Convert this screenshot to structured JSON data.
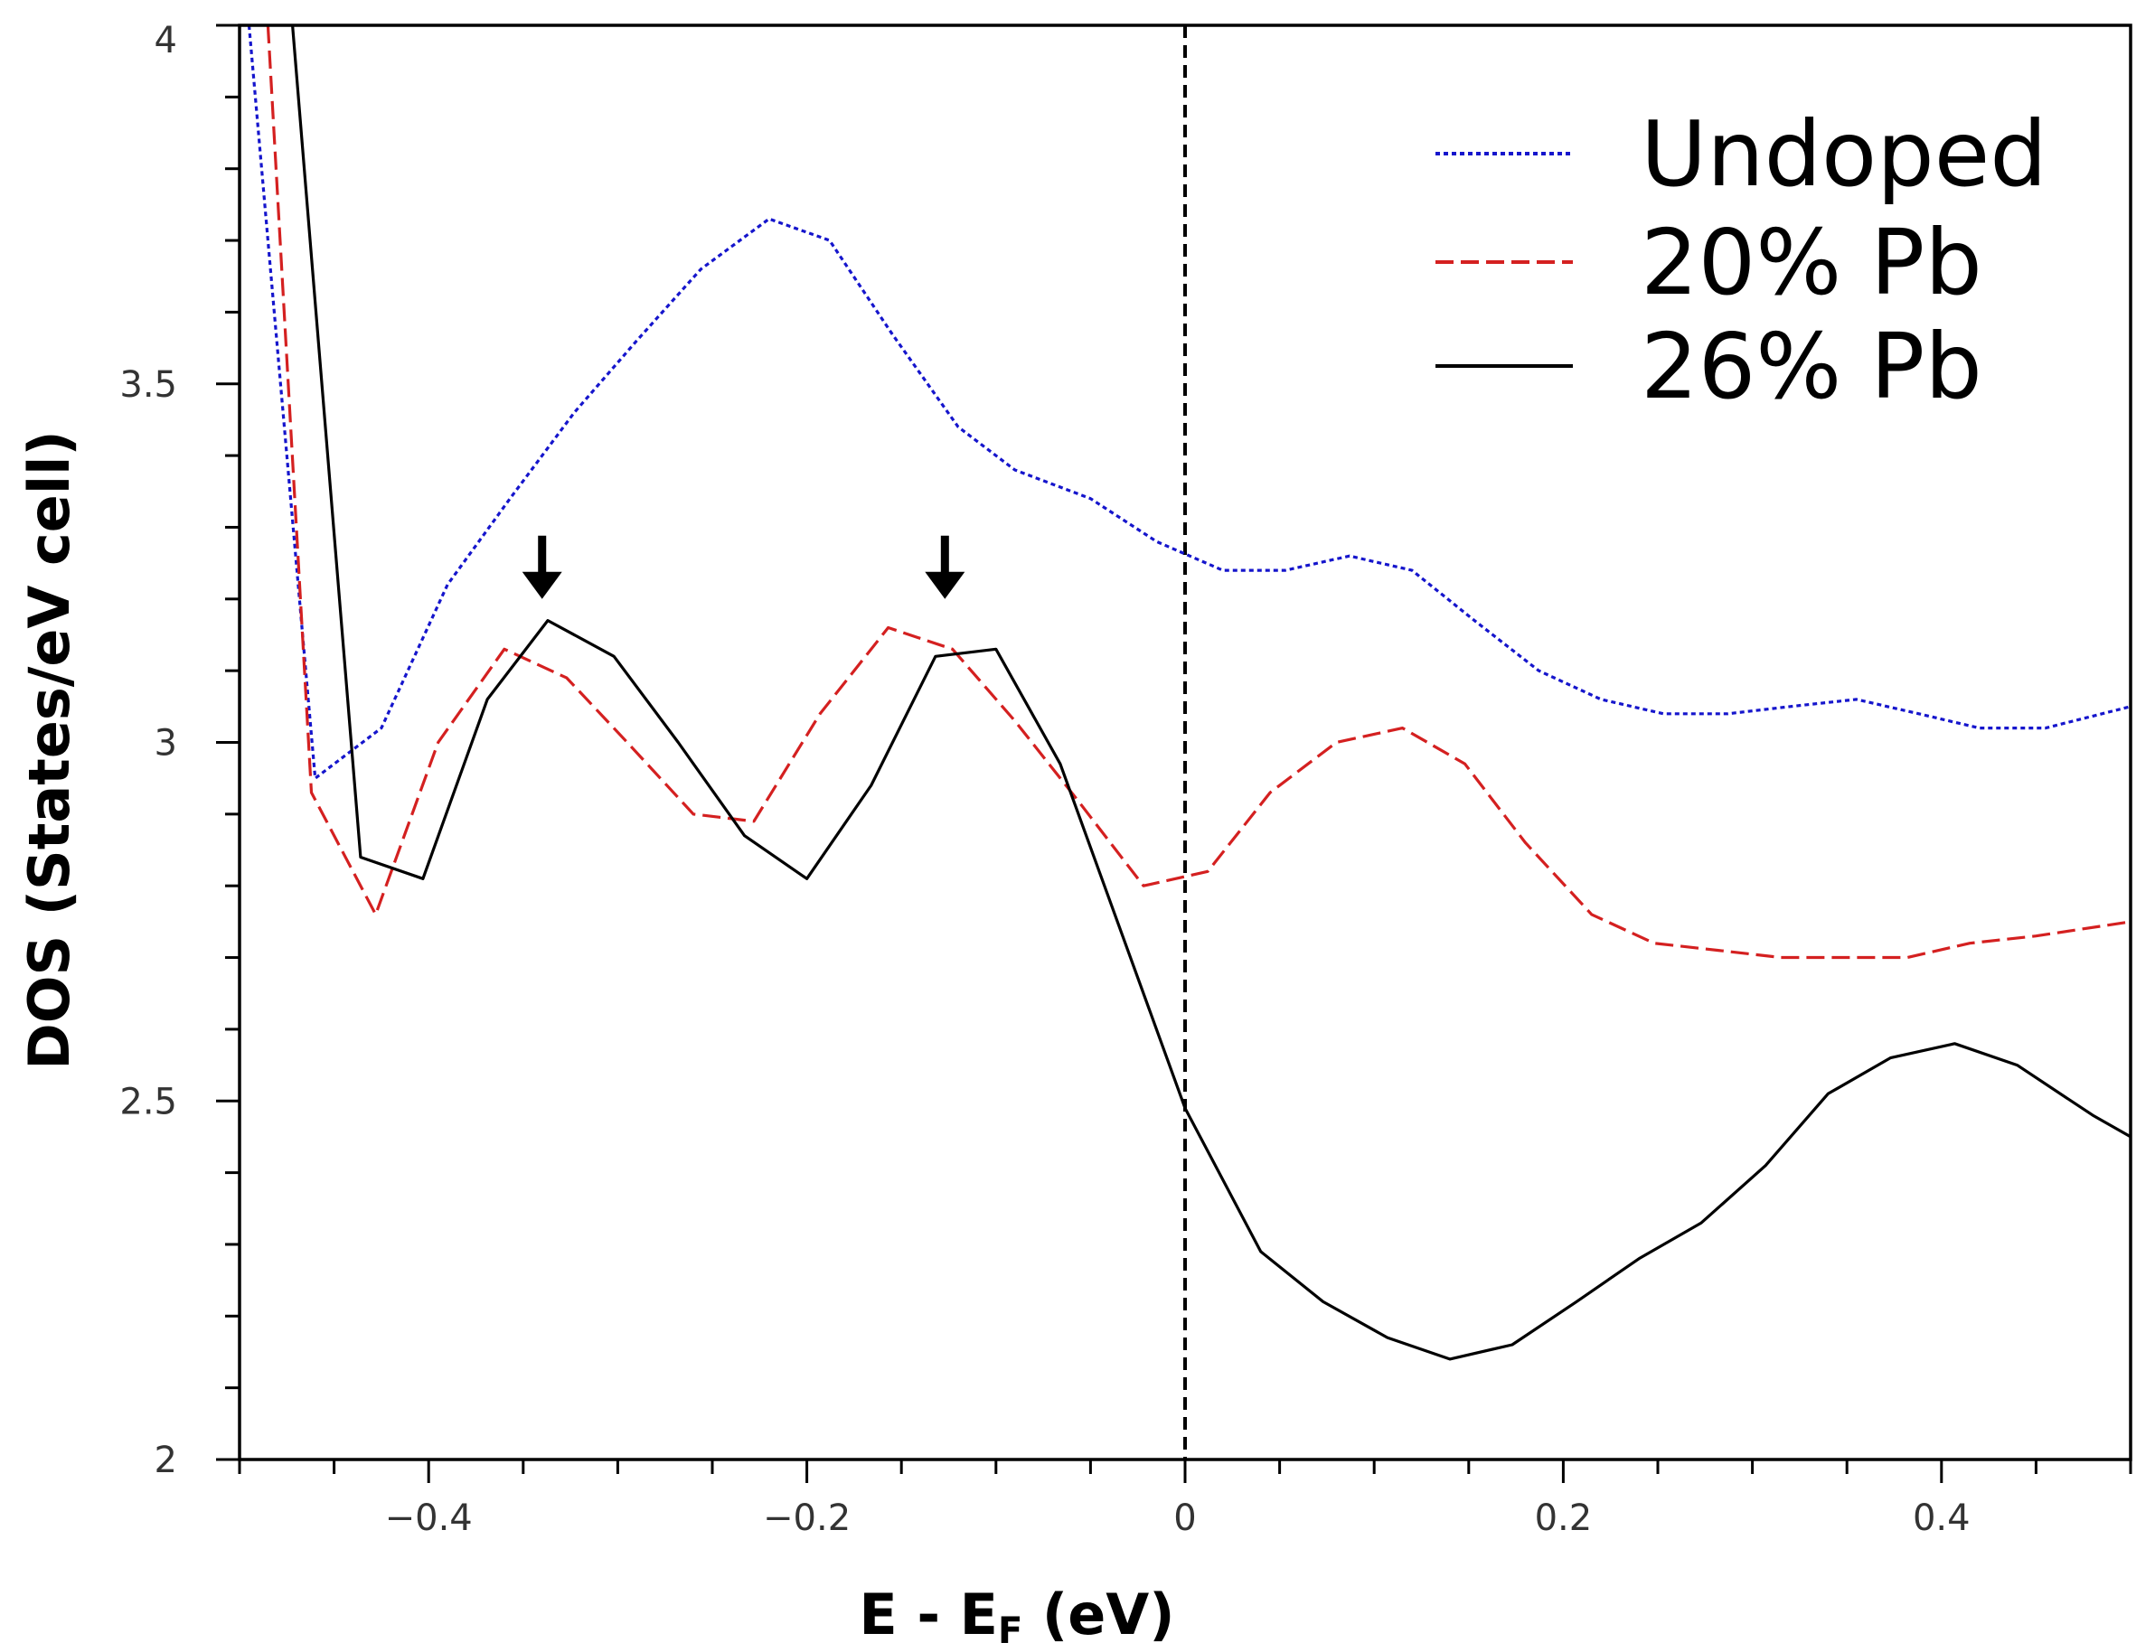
{
  "chart_data": {
    "type": "line",
    "xlabel": "E - E",
    "xlabel_sub": "F",
    "xlabel_suffix": " (eV)",
    "ylabel": "DOS (States/eV cell)",
    "xlim": [
      -0.5,
      0.5
    ],
    "ylim": [
      2,
      4
    ],
    "x_major_ticks": [
      -0.4,
      -0.2,
      0,
      0.2,
      0.4
    ],
    "x_tick_labels": [
      "−0.4",
      "−0.2",
      "0",
      "0.2",
      "0.4"
    ],
    "x_minor_step": 0.05,
    "y_major_ticks": [
      2,
      2.5,
      3,
      3.5,
      4
    ],
    "y_tick_labels": [
      "2",
      "2.5",
      "3",
      "3.5",
      "4"
    ],
    "y_minor_step": 0.1,
    "fermi_level_line": 0,
    "legend_position": "top-right",
    "series": [
      {
        "name": "Undoped",
        "color": "#1515cc",
        "style": "dotted",
        "x": [
          -0.495,
          -0.46,
          -0.425,
          -0.39,
          -0.357,
          -0.323,
          -0.29,
          -0.256,
          -0.22,
          -0.188,
          -0.155,
          -0.12,
          -0.09,
          -0.05,
          -0.015,
          0.02,
          0.053,
          0.087,
          0.12,
          0.153,
          0.187,
          0.22,
          0.253,
          0.287,
          0.32,
          0.355,
          0.388,
          0.42,
          0.455,
          0.5
        ],
        "values": [
          4.0,
          2.95,
          3.02,
          3.22,
          3.34,
          3.46,
          3.56,
          3.66,
          3.73,
          3.7,
          3.57,
          3.44,
          3.38,
          3.34,
          3.28,
          3.24,
          3.24,
          3.26,
          3.24,
          3.17,
          3.1,
          3.06,
          3.04,
          3.04,
          3.05,
          3.06,
          3.04,
          3.02,
          3.02,
          3.05
        ]
      },
      {
        "name": "20% Pb",
        "color": "#d42020",
        "style": "dashed",
        "x": [
          -0.485,
          -0.462,
          -0.428,
          -0.395,
          -0.36,
          -0.327,
          -0.295,
          -0.26,
          -0.228,
          -0.193,
          -0.157,
          -0.123,
          -0.09,
          -0.057,
          -0.022,
          0.012,
          0.045,
          0.08,
          0.115,
          0.148,
          0.18,
          0.215,
          0.248,
          0.282,
          0.315,
          0.35,
          0.382,
          0.415,
          0.45,
          0.5
        ],
        "values": [
          4.0,
          2.93,
          2.76,
          3.0,
          3.13,
          3.09,
          3.0,
          2.9,
          2.89,
          3.04,
          3.16,
          3.13,
          3.03,
          2.92,
          2.8,
          2.82,
          2.93,
          3.0,
          3.02,
          2.97,
          2.86,
          2.76,
          2.72,
          2.71,
          2.7,
          2.7,
          2.7,
          2.72,
          2.73,
          2.75
        ]
      },
      {
        "name": "26% Pb",
        "color": "#000000",
        "style": "solid",
        "x": [
          -0.472,
          -0.436,
          -0.403,
          -0.369,
          -0.337,
          -0.302,
          -0.268,
          -0.233,
          -0.2,
          -0.166,
          -0.132,
          -0.1,
          -0.066,
          0,
          0.04,
          0.073,
          0.107,
          0.14,
          0.173,
          0.207,
          0.24,
          0.273,
          0.307,
          0.34,
          0.373,
          0.407,
          0.44,
          0.48,
          0.5
        ],
        "values": [
          4.0,
          2.84,
          2.81,
          3.06,
          3.17,
          3.12,
          3.0,
          2.87,
          2.81,
          2.94,
          3.12,
          3.13,
          2.97,
          2.49,
          2.29,
          2.22,
          2.17,
          2.14,
          2.16,
          2.22,
          2.28,
          2.33,
          2.41,
          2.51,
          2.56,
          2.58,
          2.55,
          2.48,
          2.45
        ]
      }
    ],
    "annotations": [
      {
        "type": "arrow-down",
        "x": -0.34,
        "y_tip": 3.2
      },
      {
        "type": "arrow-down",
        "x": -0.127,
        "y_tip": 3.2
      }
    ]
  }
}
